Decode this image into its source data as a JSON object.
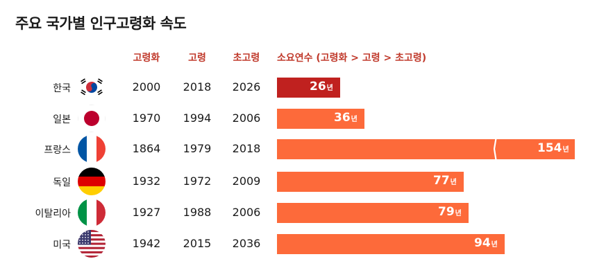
{
  "title": "주요 국가별 인구고령화 속도",
  "headers": {
    "aging": "고령화",
    "aged": "고령",
    "super_aged": "초고령",
    "duration": "소요연수 (고령화 > 고령 > 초고령)"
  },
  "colors": {
    "header": "#c0392b",
    "bar_highlight": "#c0211f",
    "bar_default": "#fd6a3a"
  },
  "chart_data": {
    "type": "bar",
    "title": "주요 국가별 인구고령화 속도",
    "categories": [
      "한국",
      "일본",
      "프랑스",
      "독일",
      "이탈리아",
      "미국"
    ],
    "series": [
      {
        "name": "소요연수 (고령화 > 고령 > 초고령)",
        "values": [
          26,
          36,
          154,
          77,
          79,
          94
        ]
      }
    ],
    "unit": "년",
    "axis_break": "프랑스 bar truncated",
    "xlabel": "",
    "ylabel": ""
  },
  "rows": [
    {
      "country": "한국",
      "flag": "korea-flag-icon",
      "aging": "2000",
      "aged": "2018",
      "super_aged": "2026",
      "years": 26,
      "unit": "년",
      "highlight": true
    },
    {
      "country": "일본",
      "flag": "japan-flag-icon",
      "aging": "1970",
      "aged": "1994",
      "super_aged": "2006",
      "years": 36,
      "unit": "년",
      "highlight": false
    },
    {
      "country": "프랑스",
      "flag": "france-flag-icon",
      "aging": "1864",
      "aged": "1979",
      "super_aged": "2018",
      "years": 154,
      "unit": "년",
      "highlight": false,
      "truncated": true
    },
    {
      "country": "독일",
      "flag": "germany-flag-icon",
      "aging": "1932",
      "aged": "1972",
      "super_aged": "2009",
      "years": 77,
      "unit": "년",
      "highlight": false
    },
    {
      "country": "이탈리아",
      "flag": "italy-flag-icon",
      "aging": "1927",
      "aged": "1988",
      "super_aged": "2006",
      "years": 79,
      "unit": "년",
      "highlight": false
    },
    {
      "country": "미국",
      "flag": "usa-flag-icon",
      "aging": "1942",
      "aged": "2015",
      "super_aged": "2036",
      "years": 94,
      "unit": "년",
      "highlight": false
    }
  ]
}
